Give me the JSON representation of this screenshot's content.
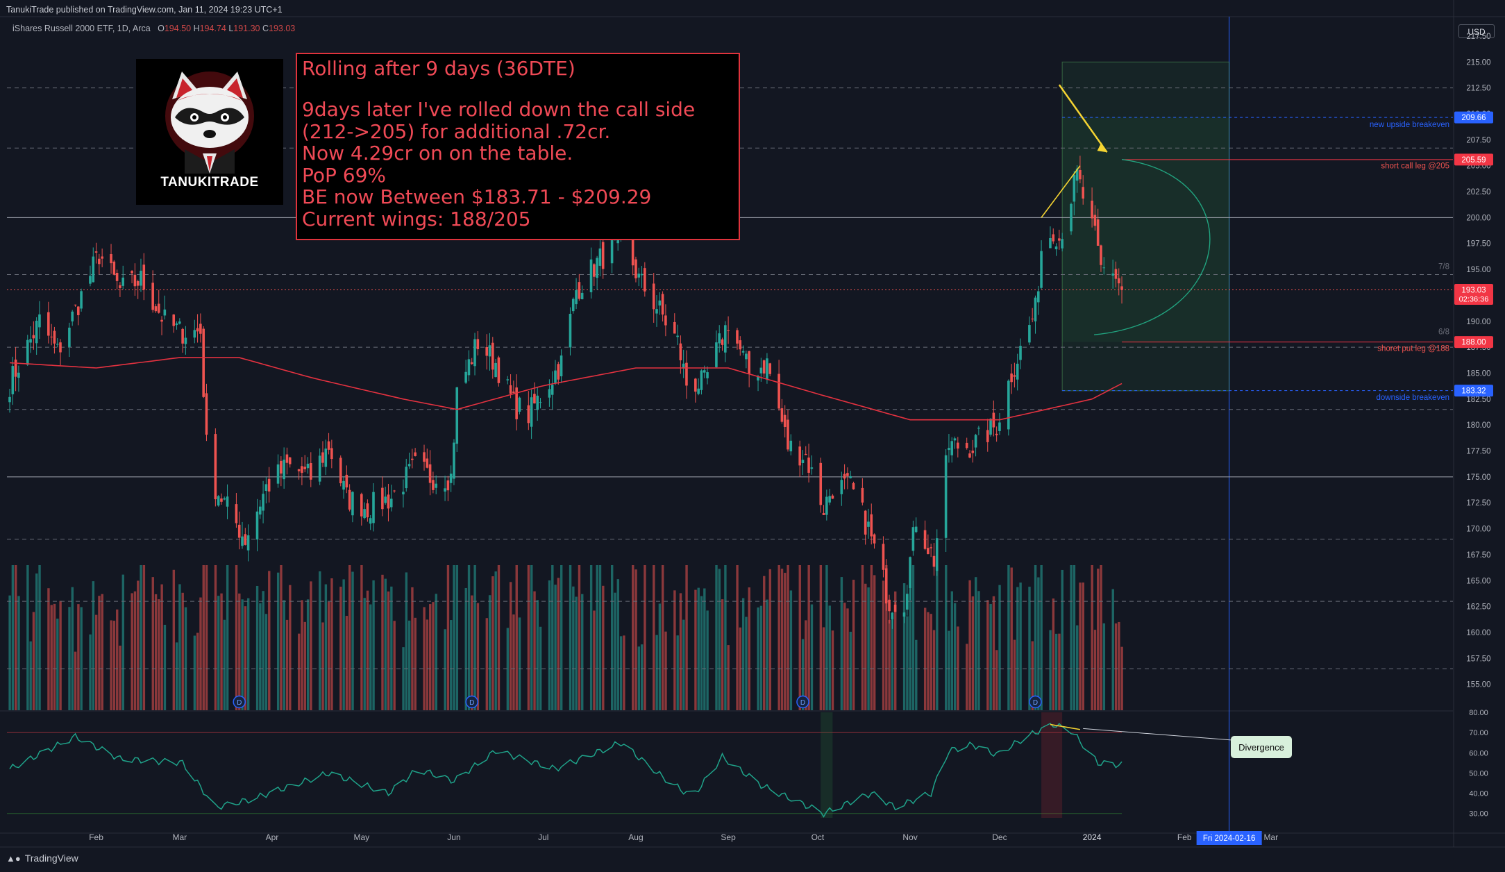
{
  "header": {
    "published": "TanukiTrade published on TradingView.com, Jan 11, 2024 19:23 UTC+1",
    "symbol": "iShares Russell 2000 ETF, 1D, Arca",
    "open_label": "O",
    "open": "194.50",
    "high_label": "H",
    "high": "194.74",
    "low_label": "L",
    "low": "191.30",
    "close_label": "C",
    "close": "193.03"
  },
  "branding": {
    "logo_text": "TANUKITRADE",
    "footer": "TradingView",
    "currency": "USD"
  },
  "note": {
    "title": "Rolling after 9 days (36DTE)",
    "lines": [
      "9days later  I've rolled down the call side",
      "(212->205) for additional .72cr.",
      "Now 4.29cr on on the table.",
      "PoP 69%",
      "BE now Between $183.71 - $209.29",
      "Current wings: 188/205"
    ]
  },
  "colors": {
    "background": "#131722",
    "up": "#26a69a",
    "down": "#ef5350",
    "ma": "#e53240",
    "rsi": "#1fa38a",
    "note_text": "#f04a56",
    "highlight_blue": "#2962ff",
    "callout": "#d8f0dc",
    "arrow": "#f5d432"
  },
  "chart_data": [
    {
      "type": "candlestick",
      "title": "iShares Russell 2000 ETF, 1D, Arca",
      "ylim": [
        152.5,
        218.5
      ],
      "y_ticks": [
        155,
        157.5,
        160,
        162.5,
        165,
        167.5,
        170,
        172.5,
        175,
        177.5,
        180,
        182.5,
        185,
        187.5,
        190,
        192.5,
        195,
        197.5,
        200,
        202.5,
        205,
        207.5,
        210,
        212.5,
        215,
        217.5
      ],
      "x_tick_labels": [
        "Feb",
        "Mar",
        "Apr",
        "May",
        "Jun",
        "Jul",
        "Aug",
        "Sep",
        "Oct",
        "Nov",
        "Dec",
        "2024",
        "Feb",
        "Mar"
      ],
      "x_tick_dates": [
        "2023-02-01",
        "2023-03-01",
        "2023-04-01",
        "2023-05-01",
        "2023-06-01",
        "2023-07-01",
        "2023-08-01",
        "2023-09-01",
        "2023-10-01",
        "2023-11-01",
        "2023-12-01",
        "2024-01-01",
        "2024-02-01",
        "2024-03-01"
      ],
      "crosshair_date_label": "Fri 2024-02-16",
      "crosshair_date": "2024-02-16",
      "price_anchors": [
        [
          "2023-01-03",
          184
        ],
        [
          "2023-01-13",
          190
        ],
        [
          "2023-01-19",
          187
        ],
        [
          "2023-02-02",
          196.5
        ],
        [
          "2023-02-09",
          193
        ],
        [
          "2023-02-16",
          194
        ],
        [
          "2023-02-24",
          190
        ],
        [
          "2023-03-01",
          189
        ],
        [
          "2023-03-08",
          189
        ],
        [
          "2023-03-10",
          178
        ],
        [
          "2023-03-13",
          174
        ],
        [
          "2023-03-17",
          172
        ],
        [
          "2023-03-23",
          169
        ],
        [
          "2023-03-30",
          174
        ],
        [
          "2023-04-06",
          176
        ],
        [
          "2023-04-14",
          175
        ],
        [
          "2023-04-20",
          178
        ],
        [
          "2023-04-26",
          173
        ],
        [
          "2023-05-03",
          172
        ],
        [
          "2023-05-11",
          173
        ],
        [
          "2023-05-19",
          176
        ],
        [
          "2023-05-24",
          175
        ],
        [
          "2023-05-31",
          175
        ],
        [
          "2023-06-02",
          183
        ],
        [
          "2023-06-09",
          188
        ],
        [
          "2023-06-15",
          186
        ],
        [
          "2023-06-21",
          182
        ],
        [
          "2023-06-26",
          181
        ],
        [
          "2023-07-07",
          186
        ],
        [
          "2023-07-12",
          193
        ],
        [
          "2023-07-20",
          196
        ],
        [
          "2023-07-28",
          198
        ],
        [
          "2023-08-02",
          194
        ],
        [
          "2023-08-09",
          191
        ],
        [
          "2023-08-15",
          188
        ],
        [
          "2023-08-18",
          184
        ],
        [
          "2023-08-24",
          184
        ],
        [
          "2023-09-01",
          190
        ],
        [
          "2023-09-08",
          185
        ],
        [
          "2023-09-14",
          186
        ],
        [
          "2023-09-21",
          178
        ],
        [
          "2023-09-27",
          177
        ],
        [
          "2023-10-03",
          172
        ],
        [
          "2023-10-06",
          174
        ],
        [
          "2023-10-12",
          174
        ],
        [
          "2023-10-18",
          170
        ],
        [
          "2023-10-25",
          163
        ],
        [
          "2023-10-30",
          163
        ],
        [
          "2023-11-03",
          171
        ],
        [
          "2023-11-09",
          167
        ],
        [
          "2023-11-14",
          178
        ],
        [
          "2023-11-22",
          178
        ],
        [
          "2023-11-30",
          180
        ],
        [
          "2023-12-05",
          185
        ],
        [
          "2023-12-13",
          191
        ],
        [
          "2023-12-15",
          197
        ],
        [
          "2023-12-19",
          199
        ],
        [
          "2023-12-21",
          198
        ],
        [
          "2023-12-27",
          204
        ],
        [
          "2024-01-02",
          198
        ],
        [
          "2024-01-04",
          195
        ],
        [
          "2024-01-08",
          195
        ],
        [
          "2024-01-11",
          193
        ]
      ],
      "series": [
        {
          "name": "iShares Russell 2000 ETF",
          "type": "candlestick",
          "last_close": 193.03
        },
        {
          "type": "moving_average",
          "anchors": [
            [
              "2023-01-03",
              186
            ],
            [
              "2023-02-01",
              185.5
            ],
            [
              "2023-03-01",
              186.5
            ],
            [
              "2023-03-21",
              186.5
            ],
            [
              "2023-04-15",
              184.5
            ],
            [
              "2023-05-15",
              182.5
            ],
            [
              "2023-06-02",
              181.5
            ],
            [
              "2023-07-01",
              183.8
            ],
            [
              "2023-08-01",
              185.5
            ],
            [
              "2023-09-01",
              185.5
            ],
            [
              "2023-10-01",
              183
            ],
            [
              "2023-11-01",
              180.5
            ],
            [
              "2023-12-01",
              180.5
            ],
            [
              "2024-01-01",
              182.5
            ],
            [
              "2024-01-11",
              184
            ]
          ]
        },
        {
          "name": "Volume",
          "type": "histogram"
        },
        {
          "type": "rsi",
          "ylim": [
            27.5,
            80
          ],
          "y_ticks": [
            30,
            40,
            50,
            60,
            70,
            80
          ],
          "anchors": [
            [
              "2023-01-03",
              52
            ],
            [
              "2023-01-25",
              68
            ],
            [
              "2023-02-09",
              57
            ],
            [
              "2023-03-02",
              55
            ],
            [
              "2023-03-13",
              33
            ],
            [
              "2023-03-25",
              37
            ],
            [
              "2023-04-20",
              50
            ],
            [
              "2023-05-10",
              40
            ],
            [
              "2023-05-20",
              52
            ],
            [
              "2023-06-01",
              46
            ],
            [
              "2023-06-15",
              61
            ],
            [
              "2023-07-05",
              52
            ],
            [
              "2023-07-27",
              65
            ],
            [
              "2023-08-10",
              48
            ],
            [
              "2023-08-20",
              38
            ],
            [
              "2023-08-30",
              58
            ],
            [
              "2023-09-12",
              44
            ],
            [
              "2023-10-03",
              30
            ],
            [
              "2023-10-19",
              40
            ],
            [
              "2023-10-27",
              33
            ],
            [
              "2023-11-08",
              40
            ],
            [
              "2023-11-14",
              61
            ],
            [
              "2023-11-22",
              64
            ],
            [
              "2023-11-30",
              59
            ],
            [
              "2023-12-10",
              68
            ],
            [
              "2023-12-19",
              74
            ],
            [
              "2023-12-25",
              71
            ],
            [
              "2024-01-03",
              55
            ],
            [
              "2024-01-11",
              54
            ]
          ]
        }
      ],
      "horizontal_lines": [
        {
          "price": 212.5,
          "style": "dashed"
        },
        {
          "price": 206.7,
          "style": "dashed"
        },
        {
          "price": 200,
          "style": "solid"
        },
        {
          "price": 194.5,
          "style": "dashed"
        },
        {
          "price": 193.03,
          "style": "dotted-red"
        },
        {
          "price": 187.5,
          "style": "dashed"
        },
        {
          "price": 181.5,
          "style": "dashed"
        },
        {
          "price": 175,
          "style": "solid"
        },
        {
          "price": 169,
          "style": "dashed"
        },
        {
          "price": 163,
          "style": "dashed"
        },
        {
          "price": 156.5,
          "style": "dashed"
        }
      ],
      "price_badges": [
        {
          "value": "209.66",
          "color": "#2962ff"
        },
        {
          "value": "205.59",
          "color": "#f23645"
        },
        {
          "value": "193.03",
          "sub": "02:36:36",
          "color": "#f23645"
        },
        {
          "value": "188.00",
          "color": "#f23645"
        },
        {
          "value": "183.32",
          "color": "#2962ff"
        }
      ],
      "annotations": [
        {
          "text": "new upside breakeven",
          "price": 209.0,
          "color": "#2962ff"
        },
        {
          "text": "short call leg @205",
          "price": 205.0,
          "color": "#ef5350"
        },
        {
          "text": "7/8",
          "price": 195.3,
          "color": "#6a6d78"
        },
        {
          "text": "6/8",
          "price": 189.0,
          "color": "#6a6d78"
        },
        {
          "text": "shoret put leg @188",
          "price": 187.4,
          "color": "#ef5350"
        },
        {
          "text": "downside breakeven",
          "price": 182.7,
          "color": "#2962ff"
        }
      ],
      "dividend_markers": [
        {
          "label": "D",
          "date": "2023-03-21"
        },
        {
          "label": "D",
          "date": "2023-06-07"
        },
        {
          "label": "D",
          "date": "2023-09-26"
        },
        {
          "label": "D",
          "date": "2023-12-13"
        }
      ],
      "callout": {
        "text": "Divergence"
      }
    }
  ]
}
